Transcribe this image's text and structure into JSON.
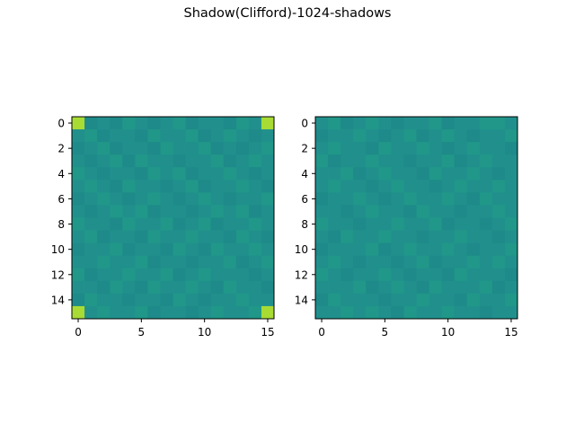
{
  "title": "Shadow(Clifford)-1024-shadows",
  "colors": {
    "low": "#228c8d",
    "mid": "#21908d",
    "high": "#a8db34",
    "frame": "#000000"
  },
  "chart_data": [
    {
      "type": "heatmap",
      "title": "",
      "rows": 16,
      "cols": 16,
      "xticks": [
        0,
        5,
        10,
        15
      ],
      "yticks": [
        0,
        2,
        4,
        6,
        8,
        10,
        12,
        14
      ],
      "xlim": [
        -0.5,
        15.5
      ],
      "ylim": [
        15.5,
        -0.5
      ],
      "grid": false,
      "corner_value": 0.25,
      "background_value": 0.0,
      "values": [
        [
          0.25,
          -0.01,
          0.0,
          -0.01,
          0.01,
          0.0,
          -0.01,
          0.0,
          0.01,
          -0.01,
          0.0,
          0.0,
          -0.01,
          0.01,
          0.0,
          0.25
        ],
        [
          0.0,
          0.01,
          -0.01,
          0.0,
          0.0,
          -0.01,
          0.01,
          0.0,
          0.0,
          0.01,
          -0.01,
          0.0,
          0.01,
          0.0,
          -0.01,
          0.0
        ],
        [
          -0.01,
          0.0,
          0.01,
          -0.01,
          0.0,
          0.0,
          -0.01,
          0.01,
          0.0,
          0.0,
          0.01,
          -0.01,
          0.0,
          -0.01,
          0.0,
          0.01
        ],
        [
          0.0,
          -0.01,
          0.0,
          0.01,
          -0.01,
          0.01,
          0.0,
          0.0,
          -0.01,
          0.0,
          0.0,
          0.01,
          -0.01,
          0.0,
          0.01,
          0.0
        ],
        [
          0.01,
          0.0,
          -0.01,
          0.0,
          0.0,
          -0.01,
          0.01,
          0.0,
          0.01,
          -0.01,
          0.0,
          0.0,
          0.01,
          0.0,
          -0.01,
          0.0
        ],
        [
          0.0,
          0.01,
          0.0,
          -0.01,
          0.01,
          0.0,
          0.0,
          -0.01,
          0.0,
          0.01,
          -0.01,
          0.0,
          0.0,
          0.01,
          0.0,
          -0.01
        ],
        [
          -0.01,
          0.0,
          0.01,
          0.0,
          -0.01,
          0.0,
          0.01,
          0.0,
          -0.01,
          0.0,
          0.01,
          0.0,
          -0.01,
          0.0,
          0.0,
          0.01
        ],
        [
          0.0,
          -0.01,
          0.0,
          0.01,
          0.0,
          0.01,
          -0.01,
          0.0,
          0.0,
          -0.01,
          0.0,
          0.01,
          0.0,
          0.01,
          -0.01,
          0.0
        ],
        [
          0.01,
          0.0,
          0.0,
          -0.01,
          0.01,
          0.0,
          0.0,
          0.01,
          -0.01,
          0.0,
          0.01,
          -0.01,
          0.0,
          0.0,
          0.01,
          0.0
        ],
        [
          0.0,
          0.01,
          -0.01,
          0.0,
          0.0,
          -0.01,
          0.01,
          0.0,
          0.0,
          0.01,
          0.0,
          0.0,
          -0.01,
          0.01,
          0.0,
          -0.01
        ],
        [
          -0.01,
          0.0,
          0.0,
          0.01,
          -0.01,
          0.0,
          0.0,
          -0.01,
          0.01,
          0.0,
          -0.01,
          0.01,
          0.0,
          0.0,
          0.01,
          0.0
        ],
        [
          0.0,
          0.0,
          0.01,
          0.0,
          0.0,
          0.01,
          -0.01,
          0.0,
          0.0,
          -0.01,
          0.0,
          0.0,
          0.01,
          -0.01,
          0.0,
          0.01
        ],
        [
          0.01,
          -0.01,
          0.0,
          0.0,
          0.01,
          0.0,
          0.0,
          0.01,
          -0.01,
          0.0,
          0.01,
          0.0,
          0.0,
          0.0,
          -0.01,
          0.0
        ],
        [
          0.0,
          0.0,
          -0.01,
          0.01,
          0.0,
          -0.01,
          0.01,
          0.0,
          0.0,
          0.01,
          0.0,
          -0.01,
          0.01,
          0.0,
          0.0,
          -0.01
        ],
        [
          -0.01,
          0.01,
          0.0,
          0.0,
          -0.01,
          0.0,
          0.0,
          -0.01,
          0.01,
          0.0,
          -0.01,
          0.0,
          0.0,
          0.01,
          0.0,
          0.0
        ],
        [
          0.25,
          0.0,
          0.01,
          0.0,
          0.0,
          0.01,
          -0.01,
          0.0,
          0.0,
          -0.01,
          0.0,
          0.01,
          0.0,
          0.0,
          0.01,
          0.25
        ]
      ]
    },
    {
      "type": "heatmap",
      "title": "",
      "rows": 16,
      "cols": 16,
      "xticks": [
        0,
        5,
        10,
        15
      ],
      "yticks": [
        0,
        2,
        4,
        6,
        8,
        10,
        12,
        14
      ],
      "xlim": [
        -0.5,
        15.5
      ],
      "ylim": [
        15.5,
        -0.5
      ],
      "grid": false,
      "background_value": 0.0,
      "values": [
        [
          0.0,
          0.01,
          -0.01,
          0.0,
          0.01,
          0.0,
          -0.01,
          0.0,
          0.0,
          0.01,
          -0.01,
          0.0,
          0.0,
          0.01,
          0.01,
          0.0
        ],
        [
          -0.01,
          0.0,
          0.0,
          0.01,
          0.0,
          -0.01,
          0.0,
          0.01,
          -0.01,
          0.0,
          0.01,
          0.0,
          -0.01,
          0.0,
          0.0,
          0.01
        ],
        [
          0.0,
          0.01,
          0.0,
          0.0,
          -0.01,
          0.01,
          0.0,
          0.0,
          0.01,
          0.0,
          -0.01,
          0.0,
          0.01,
          0.0,
          0.0,
          -0.01
        ],
        [
          0.01,
          -0.01,
          0.0,
          0.0,
          0.01,
          0.0,
          0.0,
          -0.01,
          0.0,
          0.0,
          0.01,
          -0.01,
          0.0,
          0.01,
          0.0,
          0.0
        ],
        [
          0.0,
          0.0,
          0.01,
          -0.01,
          0.0,
          0.01,
          0.0,
          0.0,
          -0.01,
          0.01,
          0.0,
          0.0,
          0.01,
          0.0,
          -0.01,
          0.0
        ],
        [
          0.0,
          0.01,
          0.0,
          0.0,
          -0.01,
          0.0,
          0.01,
          0.0,
          0.0,
          -0.01,
          0.0,
          0.01,
          0.0,
          0.0,
          0.01,
          0.0
        ],
        [
          -0.01,
          0.0,
          0.0,
          0.01,
          0.0,
          -0.01,
          0.0,
          0.01,
          0.0,
          0.0,
          0.01,
          0.0,
          -0.01,
          0.01,
          0.0,
          0.0
        ],
        [
          0.0,
          0.0,
          -0.01,
          0.0,
          0.01,
          0.0,
          0.0,
          -0.01,
          0.01,
          0.0,
          0.0,
          -0.01,
          0.0,
          0.0,
          0.01,
          0.0
        ],
        [
          0.01,
          0.0,
          0.0,
          -0.01,
          0.0,
          0.0,
          0.01,
          0.0,
          0.0,
          0.01,
          -0.01,
          0.0,
          0.0,
          -0.01,
          0.0,
          0.01
        ],
        [
          0.0,
          -0.01,
          0.01,
          0.0,
          0.0,
          0.01,
          0.0,
          0.0,
          -0.01,
          0.0,
          0.0,
          0.01,
          0.0,
          0.0,
          -0.01,
          0.0
        ],
        [
          -0.01,
          0.0,
          0.0,
          0.0,
          0.01,
          -0.01,
          0.0,
          0.01,
          0.0,
          0.0,
          0.01,
          0.0,
          -0.01,
          0.0,
          0.0,
          0.01
        ],
        [
          0.0,
          0.01,
          0.0,
          -0.01,
          0.0,
          0.0,
          -0.01,
          0.0,
          0.01,
          -0.01,
          0.0,
          0.0,
          0.01,
          0.0,
          0.01,
          0.0
        ],
        [
          0.01,
          0.0,
          -0.01,
          0.0,
          0.0,
          0.01,
          0.0,
          -0.01,
          0.0,
          0.0,
          -0.01,
          0.01,
          0.0,
          0.0,
          0.0,
          -0.01
        ],
        [
          0.0,
          0.0,
          0.0,
          0.01,
          -0.01,
          0.0,
          0.01,
          0.0,
          -0.01,
          0.01,
          0.0,
          0.0,
          0.0,
          0.01,
          -0.01,
          0.0
        ],
        [
          -0.01,
          0.01,
          0.0,
          0.0,
          0.0,
          -0.01,
          0.0,
          0.0,
          0.01,
          0.0,
          0.0,
          -0.01,
          0.01,
          0.0,
          0.0,
          0.01
        ],
        [
          0.0,
          0.0,
          0.01,
          0.0,
          0.01,
          0.0,
          -0.01,
          0.01,
          0.0,
          0.0,
          0.01,
          0.0,
          0.0,
          -0.01,
          0.0,
          0.0
        ]
      ]
    }
  ]
}
